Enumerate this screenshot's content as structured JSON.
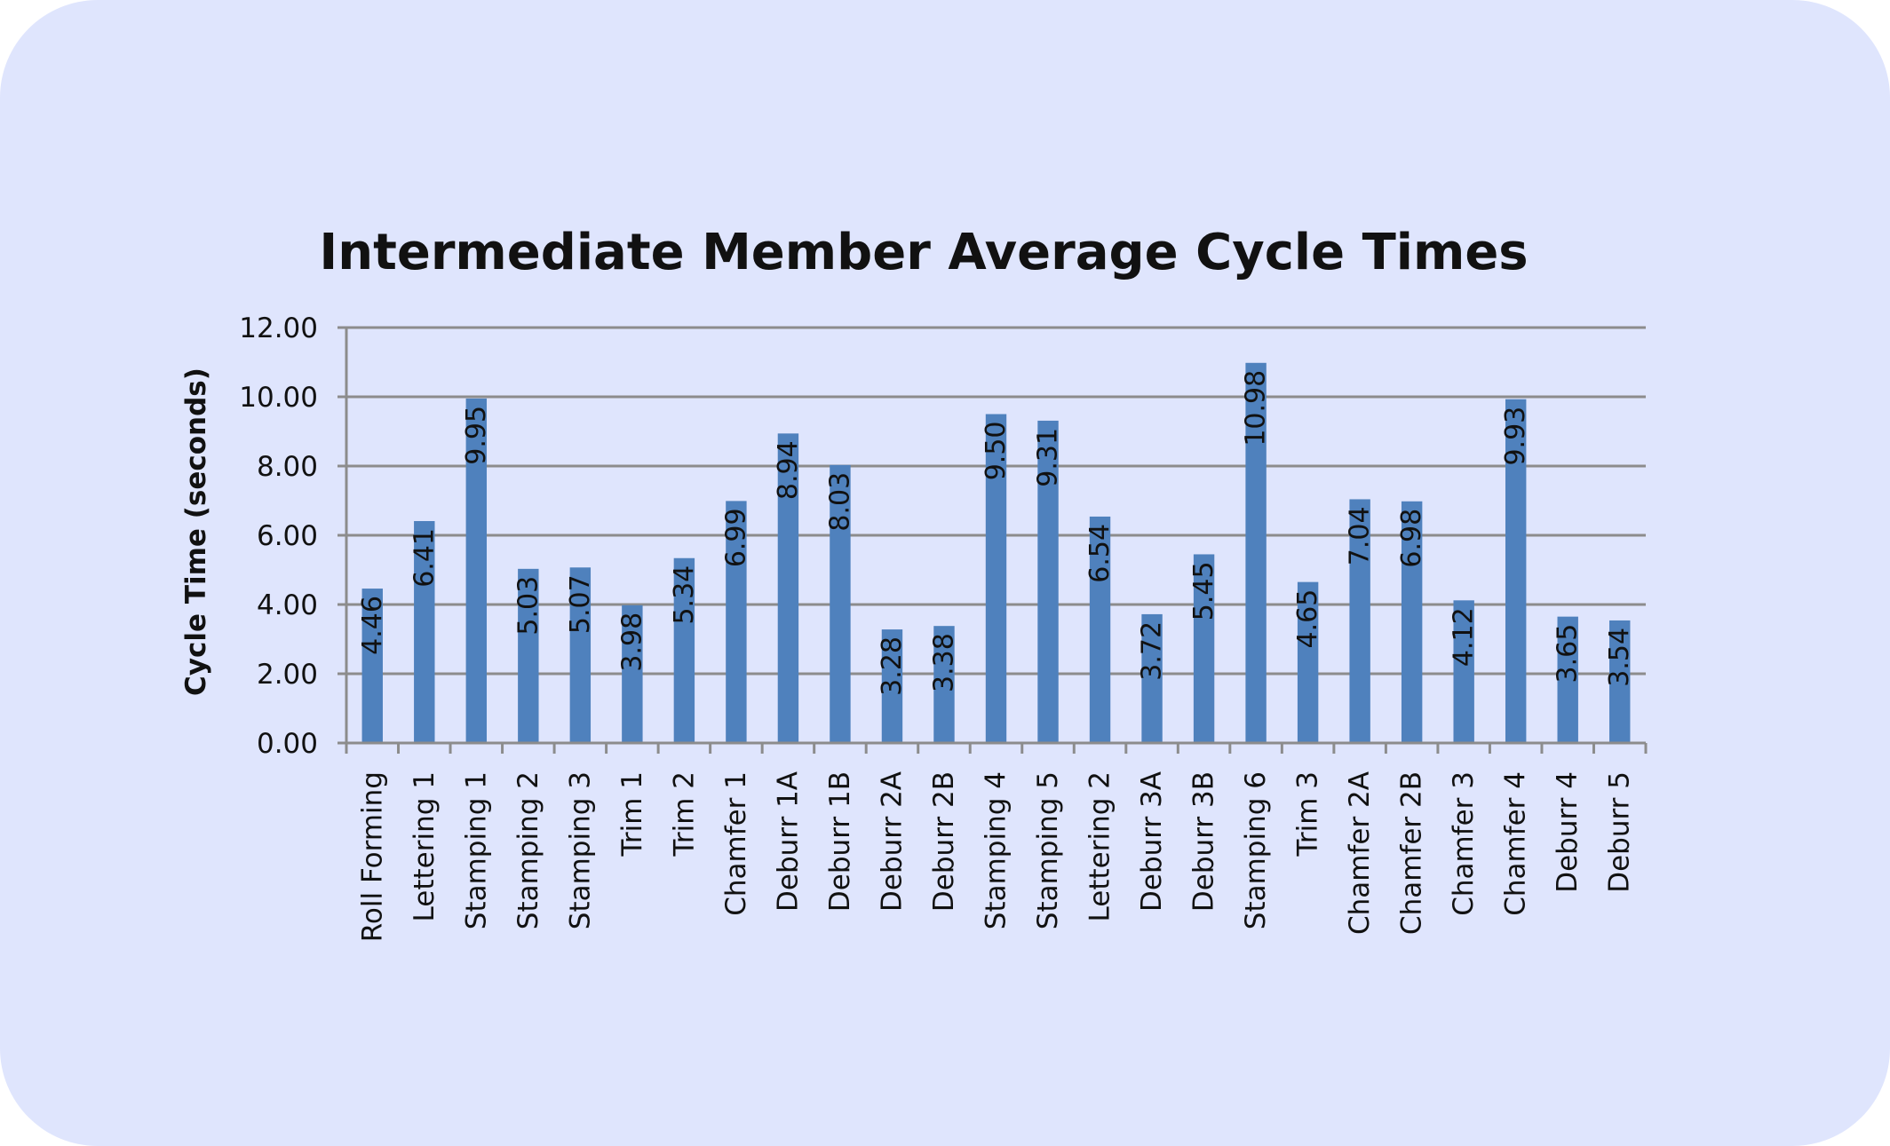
{
  "chart_data": {
    "type": "bar",
    "title": "Intermediate Member Average Cycle Times",
    "xlabel": "",
    "ylabel": "Cycle Time (seconds)",
    "ylim": [
      0,
      12
    ],
    "yticks": [
      "0.00",
      "2.00",
      "4.00",
      "6.00",
      "8.00",
      "10.00",
      "12.00"
    ],
    "grid": true,
    "legend": "none",
    "bar_color": "#4f81bd",
    "categories": [
      "Roll Forming",
      "Lettering 1",
      "Stamping 1",
      "Stamping 2",
      "Stamping 3",
      "Trim 1",
      "Trim 2",
      "Chamfer 1",
      "Deburr 1A",
      "Deburr 1B",
      "Deburr 2A",
      "Deburr 2B",
      "Stamping 4",
      "Stamping 5",
      "Lettering 2",
      "Deburr 3A",
      "Deburr 3B",
      "Stamping 6",
      "Trim 3",
      "Chamfer 2A",
      "Chamfer 2B",
      "Chamfer 3",
      "Chamfer 4",
      "Deburr 4",
      "Deburr 5"
    ],
    "values": [
      4.46,
      6.41,
      9.95,
      5.03,
      5.07,
      3.98,
      5.34,
      6.99,
      8.94,
      8.03,
      3.28,
      3.38,
      9.5,
      9.31,
      6.54,
      3.72,
      5.45,
      10.98,
      4.65,
      7.04,
      6.98,
      4.12,
      9.93,
      3.65,
      3.54
    ],
    "data_labels": [
      "4.46",
      "6.41",
      "9.95",
      "5.03",
      "5.07",
      "3.98",
      "5.34",
      "6.99",
      "8.94",
      "8.03",
      "3.28",
      "3.38",
      "9.50",
      "9.31",
      "6.54",
      "3.72",
      "5.45",
      "10.98",
      "4.65",
      "7.04",
      "6.98",
      "4.12",
      "9.93",
      "3.65",
      "3.54"
    ]
  }
}
